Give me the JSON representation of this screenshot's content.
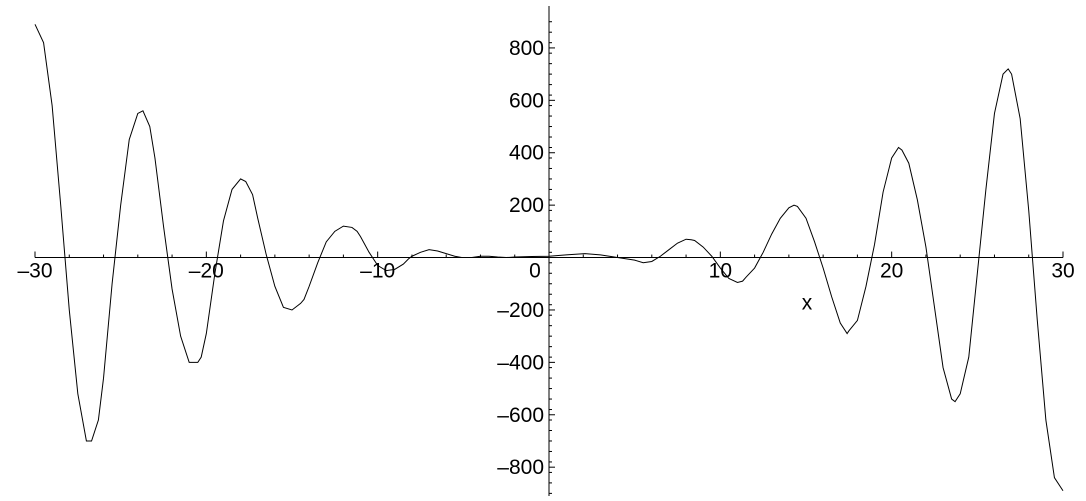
{
  "chart_data": {
    "type": "line",
    "title": "",
    "xlabel": "x",
    "ylabel": "",
    "xlim": [
      -30,
      30
    ],
    "ylim": [
      -910,
      960
    ],
    "x_ticks": [
      -30,
      -20,
      -10,
      0,
      10,
      20,
      30
    ],
    "x_tick_labels": [
      "–30",
      "–20",
      "–10",
      "0",
      "10",
      "20",
      "30"
    ],
    "y_ticks": [
      -800,
      -600,
      -400,
      -200,
      200,
      400,
      600,
      800
    ],
    "y_tick_labels": [
      "–800",
      "–600",
      "–400",
      "–200",
      "200",
      "400",
      "600",
      "800"
    ],
    "grid": false,
    "legend": "none",
    "line_color": "#000000",
    "series": [
      {
        "x": [
          -30,
          -29.5,
          -29,
          -28.5,
          -28,
          -27.5,
          -27,
          -26.7,
          -26.3,
          -26,
          -25.5,
          -25,
          -24.5,
          -24,
          -23.7,
          -23.3,
          -23,
          -22.5,
          -22,
          -21.5,
          -21,
          -20.5,
          -20.3,
          -20,
          -19.5,
          -19,
          -18.5,
          -18,
          -17.7,
          -17.3,
          -17,
          -16.5,
          -16,
          -15.5,
          -15,
          -14.5,
          -14.3,
          -14,
          -13.5,
          -13,
          -12.5,
          -12,
          -11.5,
          -11.2,
          -11,
          -10.5,
          -10,
          -9.5,
          -9,
          -8.5,
          -8.2,
          -8,
          -7.5,
          -7,
          -6.5,
          -6,
          -5.5,
          -5.1,
          -4.5,
          -4,
          -3.5,
          -3,
          -2.5,
          -2,
          -1,
          0,
          1,
          2.1,
          3,
          4,
          5,
          5.5,
          6,
          6.5,
          7,
          7.5,
          8,
          8.3,
          8.5,
          9,
          9.5,
          10,
          10.5,
          11,
          11.3,
          11.5,
          12,
          12.5,
          13,
          13.5,
          14,
          14.3,
          14.5,
          15,
          15.5,
          16,
          16.5,
          17,
          17.4,
          17.5,
          18,
          18.5,
          19,
          19.5,
          20,
          20.4,
          20.6,
          21,
          21.5,
          22,
          22.5,
          23,
          23.5,
          23.7,
          24,
          24.5,
          25,
          25.5,
          26,
          26.5,
          26.8,
          27,
          27.5,
          28,
          28.5,
          29,
          29.5,
          30
        ],
        "y": [
          890,
          820,
          580,
          200,
          -200,
          -520,
          -700,
          -700,
          -620,
          -460,
          -100,
          200,
          450,
          550,
          560,
          500,
          380,
          120,
          -120,
          -300,
          -400,
          -400,
          -380,
          -290,
          -60,
          140,
          260,
          300,
          290,
          240,
          150,
          10,
          -110,
          -190,
          -200,
          -175,
          -160,
          -110,
          -20,
          60,
          100,
          120,
          115,
          100,
          80,
          20,
          -30,
          -50,
          -45,
          -25,
          -5,
          5,
          20,
          30,
          25,
          15,
          5,
          0,
          0,
          5,
          5,
          2,
          0,
          2,
          4,
          5,
          10,
          15,
          10,
          0,
          -10,
          -20,
          -15,
          5,
          30,
          55,
          70,
          68,
          65,
          40,
          5,
          -40,
          -80,
          -95,
          -90,
          -75,
          -40,
          20,
          90,
          150,
          190,
          200,
          195,
          150,
          60,
          -40,
          -150,
          -250,
          -290,
          -280,
          -240,
          -110,
          50,
          250,
          380,
          420,
          410,
          360,
          220,
          40,
          -190,
          -420,
          -540,
          -550,
          -520,
          -380,
          -60,
          260,
          550,
          700,
          720,
          700,
          530,
          180,
          -240,
          -620,
          -840,
          -890
        ]
      }
    ]
  }
}
